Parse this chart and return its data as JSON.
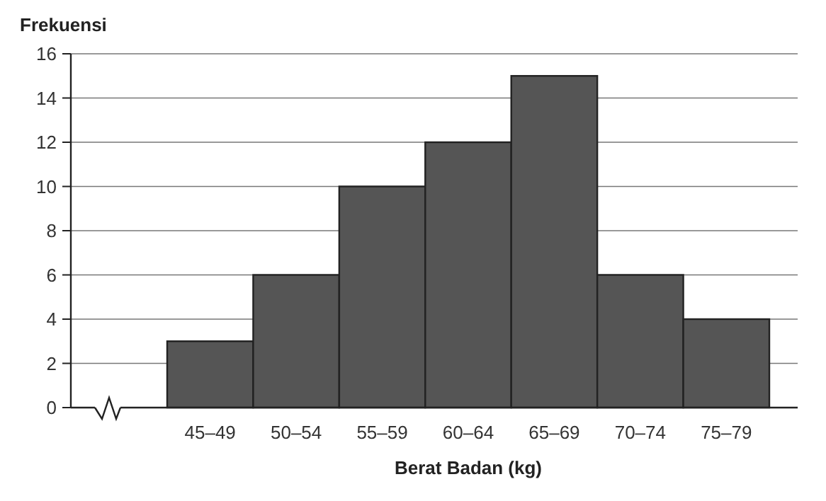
{
  "chart_data": {
    "type": "bar",
    "xlabel": "Berat Badan (kg)",
    "ylabel": "Frekuensi",
    "categories": [
      "45–49",
      "50–54",
      "55–59",
      "60–64",
      "65–69",
      "70–74",
      "75–79"
    ],
    "values": [
      3,
      6,
      10,
      12,
      15,
      6,
      4
    ],
    "color": "#555555",
    "ylim": [
      0,
      16
    ],
    "yticks": [
      0,
      2,
      4,
      6,
      8,
      10,
      12,
      14,
      16
    ],
    "grid": "y"
  }
}
